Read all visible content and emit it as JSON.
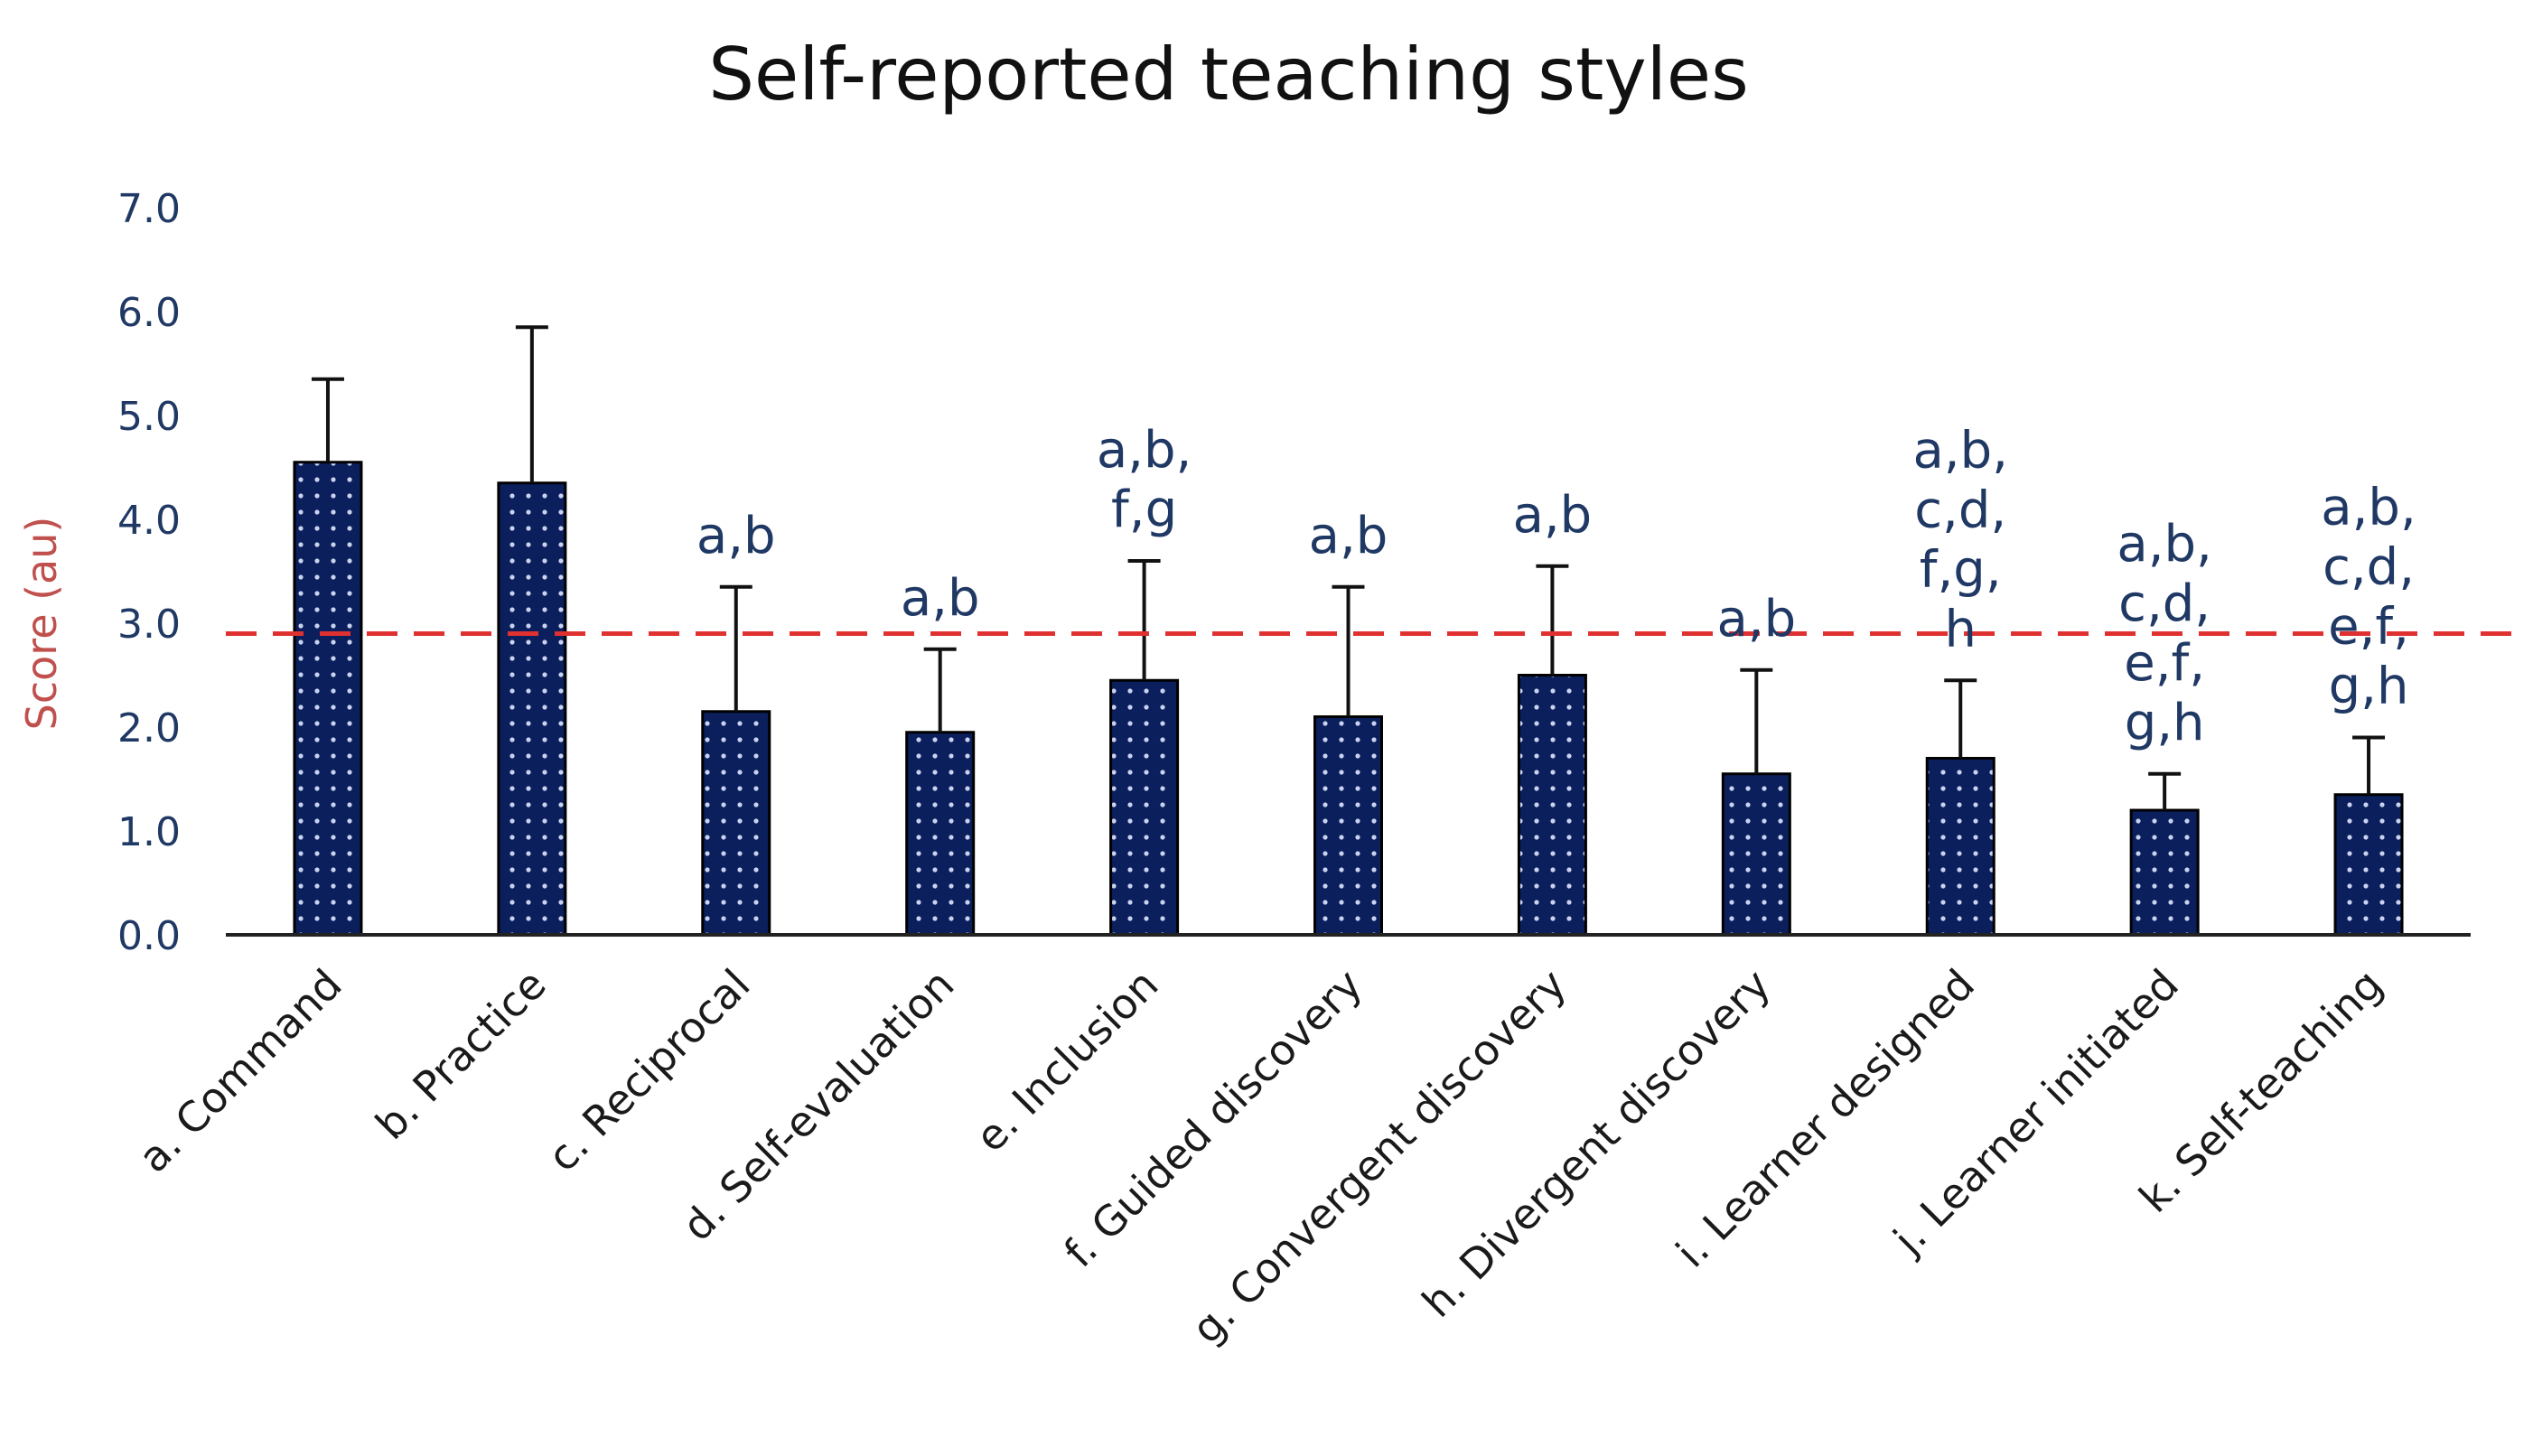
{
  "chart_data": {
    "type": "bar",
    "title": "Self-reported teaching styles",
    "ylabel": "Score (au)",
    "xlabel": "",
    "ylim": [
      0,
      7
    ],
    "yticks": [
      "0.0",
      "1.0",
      "2.0",
      "3.0",
      "4.0",
      "5.0",
      "6.0",
      "7.0"
    ],
    "categories": [
      "a. Command",
      "b. Practice",
      "c. Reciprocal",
      "d. Self-evaluation",
      "e. Inclusion",
      "f. Guided discovery",
      "g. Convergent discovery",
      "h. Divergent discovery",
      "i. Learner designed",
      "j. Learner initiated",
      "k. Self-teaching"
    ],
    "values": [
      4.55,
      4.35,
      2.15,
      1.95,
      2.45,
      2.1,
      2.5,
      1.55,
      1.7,
      1.2,
      1.35
    ],
    "error_upper": [
      5.35,
      5.85,
      3.35,
      2.75,
      3.6,
      3.35,
      3.55,
      2.55,
      2.45,
      1.55,
      1.9
    ],
    "annotations": [
      [],
      [],
      [
        "a,b"
      ],
      [
        "a,b"
      ],
      [
        "a,b,",
        "f,g"
      ],
      [
        "a,b"
      ],
      [
        "a,b"
      ],
      [
        "a,b"
      ],
      [
        "a,b,",
        "c,d,",
        "f,g,",
        "h"
      ],
      [
        "a,b,",
        "c,d,",
        "e,f,",
        "g,h"
      ],
      [
        "a,b,",
        "c,d,",
        "e,f,",
        "g,h"
      ]
    ],
    "reference_line": 2.9,
    "grid": false,
    "colors": {
      "bar": "#0b1f5c",
      "bar_dots": "#c9d3f0",
      "error": "#111111",
      "reference_line": "#e03131",
      "ytick_text": "#1f3864",
      "ylabel_text": "#c0504d"
    }
  }
}
